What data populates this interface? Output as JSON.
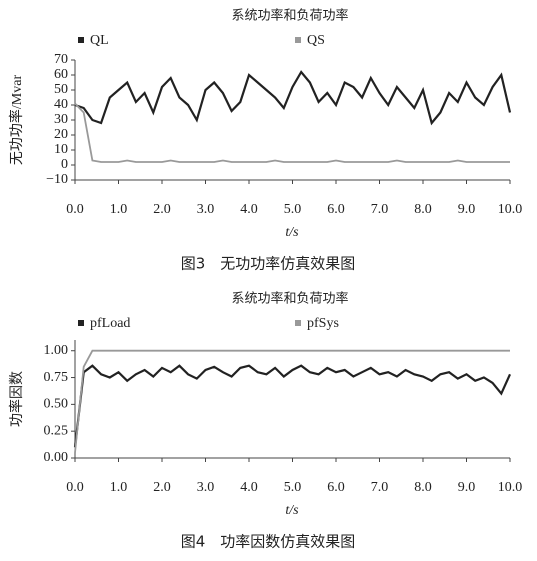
{
  "chart_data": [
    {
      "type": "line",
      "title": "系统功率和负荷功率",
      "caption": "图3　无功功率仿真效果图",
      "ylabel": "无功功率/Mvar",
      "xlabel": "t/s",
      "x": [
        0,
        0.2,
        0.4,
        0.6,
        0.8,
        1,
        1.2,
        1.4,
        1.6,
        1.8,
        2,
        2.2,
        2.4,
        2.6,
        2.8,
        3,
        3.2,
        3.4,
        3.6,
        3.8,
        4,
        4.2,
        4.4,
        4.6,
        4.8,
        5,
        5.2,
        5.4,
        5.6,
        5.8,
        6,
        6.2,
        6.4,
        6.6,
        6.8,
        7,
        7.2,
        7.4,
        7.6,
        7.8,
        8,
        8.2,
        8.4,
        8.6,
        8.8,
        9,
        9.2,
        9.4,
        9.6,
        9.8,
        10
      ],
      "series": [
        {
          "name": "QL",
          "color": "#222222",
          "values": [
            40,
            38,
            30,
            28,
            45,
            50,
            55,
            42,
            48,
            35,
            52,
            58,
            45,
            40,
            30,
            50,
            55,
            48,
            36,
            42,
            60,
            55,
            50,
            45,
            38,
            52,
            62,
            55,
            42,
            48,
            40,
            55,
            52,
            45,
            58,
            48,
            40,
            52,
            45,
            38,
            50,
            28,
            35,
            48,
            42,
            55,
            45,
            40,
            52,
            60,
            35
          ]
        },
        {
          "name": "QS",
          "color": "#999999",
          "values": [
            41,
            35,
            3,
            2,
            2,
            2,
            3,
            2,
            2,
            2,
            2,
            3,
            2,
            2,
            2,
            2,
            2,
            3,
            2,
            2,
            2,
            2,
            2,
            3,
            2,
            2,
            2,
            2,
            2,
            2,
            3,
            2,
            2,
            2,
            2,
            2,
            2,
            3,
            2,
            2,
            2,
            2,
            2,
            2,
            3,
            2,
            2,
            2,
            2,
            2,
            2
          ]
        }
      ],
      "xlim": [
        0,
        10
      ],
      "ylim": [
        -10,
        70
      ],
      "xticks": [
        {
          "value": 0,
          "label": "0.0"
        },
        {
          "value": 1,
          "label": "1.0"
        },
        {
          "value": 2,
          "label": "2.0"
        },
        {
          "value": 3,
          "label": "3.0"
        },
        {
          "value": 4,
          "label": "4.0"
        },
        {
          "value": 5,
          "label": "5.0"
        },
        {
          "value": 6,
          "label": "6.0"
        },
        {
          "value": 7,
          "label": "7.0"
        },
        {
          "value": 8,
          "label": "8.0"
        },
        {
          "value": 9,
          "label": "9.0"
        },
        {
          "value": 10,
          "label": "10.0"
        }
      ],
      "yticks": [
        {
          "value": -10,
          "label": "−10"
        },
        0,
        10,
        20,
        30,
        40,
        50,
        60,
        70
      ]
    },
    {
      "type": "line",
      "title": "系统功率和负荷功率",
      "caption": "图4　功率因数仿真效果图",
      "ylabel": "功率因数",
      "xlabel": "t/s",
      "x": [
        0,
        0.2,
        0.4,
        0.6,
        0.8,
        1,
        1.2,
        1.4,
        1.6,
        1.8,
        2,
        2.2,
        2.4,
        2.6,
        2.8,
        3,
        3.2,
        3.4,
        3.6,
        3.8,
        4,
        4.2,
        4.4,
        4.6,
        4.8,
        5,
        5.2,
        5.4,
        5.6,
        5.8,
        6,
        6.2,
        6.4,
        6.6,
        6.8,
        7,
        7.2,
        7.4,
        7.6,
        7.8,
        8,
        8.2,
        8.4,
        8.6,
        8.8,
        9,
        9.2,
        9.4,
        9.6,
        9.8,
        10
      ],
      "series": [
        {
          "name": "pfLoad",
          "color": "#222222",
          "values": [
            0.1,
            0.8,
            0.86,
            0.78,
            0.75,
            0.8,
            0.72,
            0.78,
            0.82,
            0.76,
            0.84,
            0.8,
            0.86,
            0.78,
            0.74,
            0.82,
            0.85,
            0.8,
            0.76,
            0.84,
            0.86,
            0.8,
            0.78,
            0.84,
            0.76,
            0.82,
            0.86,
            0.8,
            0.78,
            0.84,
            0.8,
            0.82,
            0.76,
            0.8,
            0.84,
            0.78,
            0.8,
            0.76,
            0.82,
            0.78,
            0.76,
            0.72,
            0.78,
            0.8,
            0.74,
            0.78,
            0.72,
            0.75,
            0.7,
            0.6,
            0.78
          ]
        },
        {
          "name": "pfSys",
          "color": "#999999",
          "values": [
            0.05,
            0.85,
            1,
            1,
            1,
            1,
            1,
            1,
            1,
            1,
            1,
            1,
            1,
            1,
            1,
            1,
            1,
            1,
            1,
            1,
            1,
            1,
            1,
            1,
            1,
            1,
            1,
            1,
            1,
            1,
            1,
            1,
            1,
            1,
            1,
            1,
            1,
            1,
            1,
            1,
            1,
            1,
            1,
            1,
            1,
            1,
            1,
            1,
            1,
            1,
            1
          ]
        }
      ],
      "xlim": [
        0,
        10
      ],
      "ylim": [
        0,
        1.1
      ],
      "xticks": [
        {
          "value": 0,
          "label": "0.0"
        },
        {
          "value": 1,
          "label": "1.0"
        },
        {
          "value": 2,
          "label": "2.0"
        },
        {
          "value": 3,
          "label": "3.0"
        },
        {
          "value": 4,
          "label": "4.0"
        },
        {
          "value": 5,
          "label": "5.0"
        },
        {
          "value": 6,
          "label": "6.0"
        },
        {
          "value": 7,
          "label": "7.0"
        },
        {
          "value": 8,
          "label": "8.0"
        },
        {
          "value": 9,
          "label": "9.0"
        },
        {
          "value": 10,
          "label": "10.0"
        }
      ],
      "yticks": [
        {
          "value": 0,
          "label": "0.00"
        },
        {
          "value": 0.25,
          "label": "0.25"
        },
        {
          "value": 0.5,
          "label": "0.50"
        },
        {
          "value": 0.75,
          "label": "0.75"
        },
        {
          "value": 1,
          "label": "1.00"
        }
      ]
    }
  ]
}
